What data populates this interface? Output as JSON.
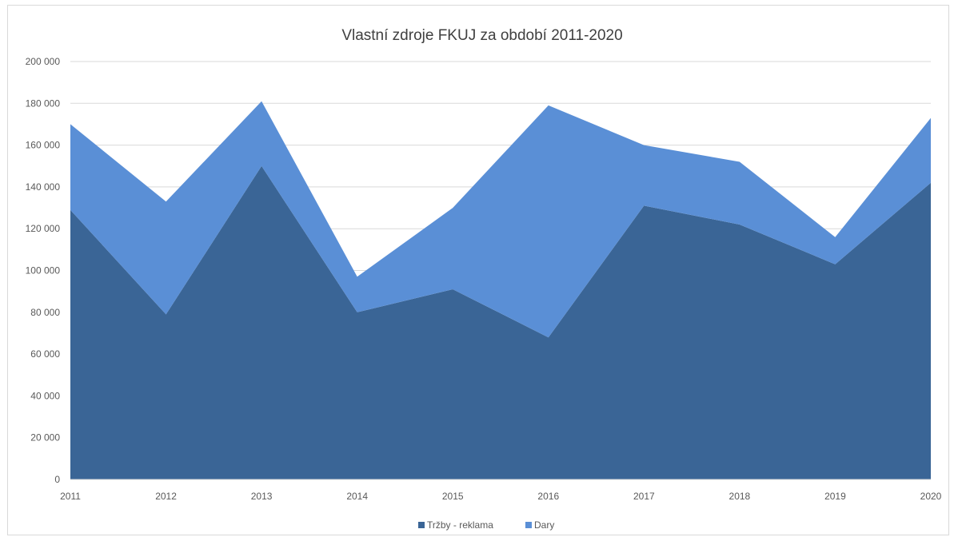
{
  "chart_data": {
    "type": "area",
    "stacked": true,
    "title": "Vlastní zdroje FKUJ za období 2011-2020",
    "xlabel": "",
    "ylabel": "",
    "categories": [
      "2011",
      "2012",
      "2013",
      "2014",
      "2015",
      "2016",
      "2017",
      "2018",
      "2019",
      "2020"
    ],
    "series": [
      {
        "name": "Tržby - reklama",
        "color": "#3a6596",
        "values": [
          129000,
          79000,
          150000,
          80000,
          91000,
          68000,
          131000,
          122000,
          103000,
          142000
        ]
      },
      {
        "name": "Dary",
        "color": "#5a8fd6",
        "values": [
          41000,
          54000,
          31000,
          17000,
          39000,
          111000,
          29000,
          30000,
          13000,
          31000
        ]
      }
    ],
    "ylim": [
      0,
      200000
    ],
    "yticks": [
      0,
      20000,
      40000,
      60000,
      80000,
      100000,
      120000,
      140000,
      160000,
      180000,
      200000
    ],
    "ytick_labels": [
      "0",
      "20 000",
      "40 000",
      "60 000",
      "80 000",
      "100 000",
      "120 000",
      "140 000",
      "160 000",
      "180 000",
      "200 000"
    ],
    "grid": true,
    "legend_position": "bottom"
  }
}
